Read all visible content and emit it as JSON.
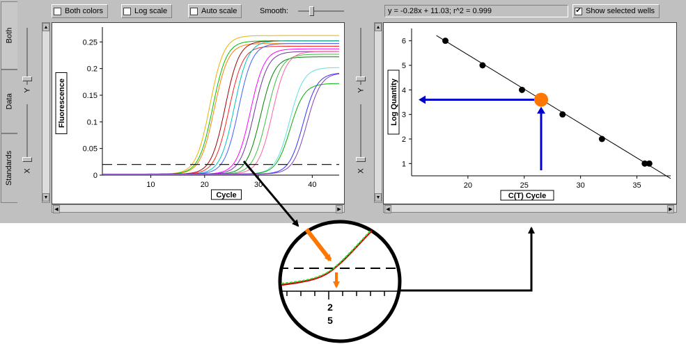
{
  "side_tabs": [
    "Both",
    "Data",
    "Standards"
  ],
  "toolbar": {
    "both_colors": "Both colors",
    "log_scale": "Log scale",
    "auto_scale": "Auto scale",
    "smooth": "Smooth:",
    "equation": "y = -0.28x + 11.03;  r^2 = 0.999",
    "show_selected_wells": "Show selected wells",
    "show_selected_checked": "✔"
  },
  "axis_slider_labels": [
    "Y",
    "X",
    "Y",
    "X"
  ],
  "colors": {
    "threshold": "#000000",
    "arrow_blue": "#0000cc",
    "marker_orange": "#ff7700",
    "window": "#c0c0c0"
  },
  "chart_data": [
    {
      "type": "line",
      "title": "",
      "xlabel": "Cycle",
      "ylabel": "Fluorescence",
      "x_ticks": [
        10,
        20,
        30,
        40
      ],
      "y_ticks": [
        "0",
        "0.05",
        "0.1",
        "0.15",
        "0.2",
        "0.25"
      ],
      "xlim": [
        1,
        45
      ],
      "ylim": [
        0,
        0.27
      ],
      "threshold": 0.02,
      "series": [
        {
          "color": "#e8b400",
          "midpoint": 21.0,
          "plateau": 0.26
        },
        {
          "color": "#ff8000",
          "midpoint": 21.8,
          "plateau": 0.245
        },
        {
          "color": "#00c000",
          "midpoint": 21.5,
          "plateau": 0.25
        },
        {
          "color": "#a00000",
          "midpoint": 23.8,
          "plateau": 0.25
        },
        {
          "color": "#ff2020",
          "midpoint": 24.5,
          "plateau": 0.24
        },
        {
          "color": "#00c0c0",
          "midpoint": 25.5,
          "plateau": 0.25
        },
        {
          "color": "#4060ff",
          "midpoint": 26.3,
          "plateau": 0.245
        },
        {
          "color": "#ff00ff",
          "midpoint": 28.5,
          "plateau": 0.235
        },
        {
          "color": "#7030a0",
          "midpoint": 29.2,
          "plateau": 0.23
        },
        {
          "color": "#008000",
          "midpoint": 30.4,
          "plateau": 0.22
        },
        {
          "color": "#40c040",
          "midpoint": 31.6,
          "plateau": 0.225
        },
        {
          "color": "#ff60a0",
          "midpoint": 32.6,
          "plateau": 0.23
        },
        {
          "color": "#60e0e0",
          "midpoint": 35.8,
          "plateau": 0.2
        },
        {
          "color": "#00b000",
          "midpoint": 35.9,
          "plateau": 0.17
        },
        {
          "color": "#3030ff",
          "midpoint": 38.3,
          "plateau": 0.19
        },
        {
          "color": "#8040c0",
          "midpoint": 39.0,
          "plateau": 0.19
        }
      ]
    },
    {
      "type": "scatter",
      "title": "",
      "xlabel": "C(T) Cycle",
      "ylabel": "Log Quantity",
      "x_ticks": [
        20,
        25,
        30,
        35
      ],
      "y_ticks": [
        1,
        2,
        3,
        4,
        5,
        6
      ],
      "xlim": [
        15,
        38
      ],
      "ylim": [
        0.5,
        6.5
      ],
      "points": [
        {
          "x": 18.0,
          "y": 6.0
        },
        {
          "x": 21.3,
          "y": 5.0
        },
        {
          "x": 24.8,
          "y": 4.0
        },
        {
          "x": 28.4,
          "y": 3.0
        },
        {
          "x": 31.9,
          "y": 2.0
        },
        {
          "x": 35.7,
          "y": 1.0
        },
        {
          "x": 36.1,
          "y": 1.0
        }
      ],
      "fit": {
        "slope": -0.28,
        "intercept": 11.03
      },
      "highlight": {
        "x": 26.5,
        "y": 3.6
      }
    }
  ],
  "zoom_inset": {
    "tick_label_top": "2",
    "tick_label_bottom": "5"
  }
}
